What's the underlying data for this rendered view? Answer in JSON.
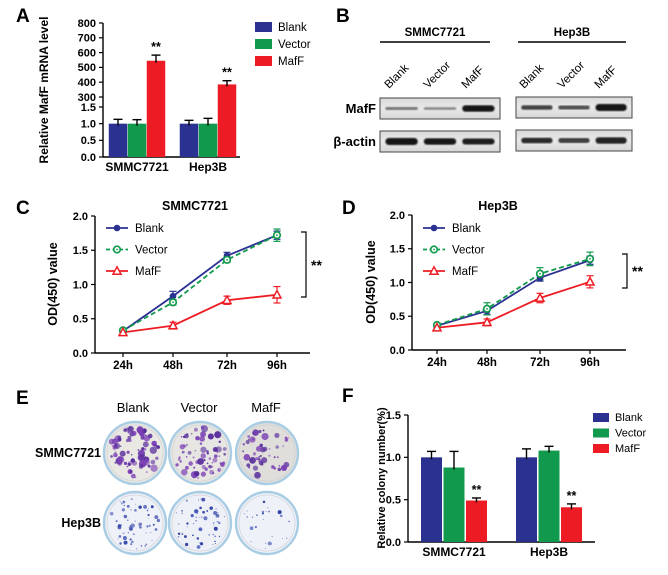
{
  "colors": {
    "blank": "#2b3191",
    "vector": "#119a4d",
    "maff": "#ed1c24",
    "axis": "#000000",
    "dish_rim": "#a9cce5"
  },
  "legend_labels": [
    "Blank",
    "Vector",
    "MafF"
  ],
  "panels": {
    "a": {
      "label": "A"
    },
    "b": {
      "label": "B",
      "cell_lines": [
        "SMMC7721",
        "Hep3B"
      ],
      "lanes": [
        "Blank",
        "Vector",
        "MafF"
      ],
      "blot_rows": [
        {
          "name": "MafF",
          "bands": [
            {
              "intensity": [
                0.32,
                0.22,
                1.0
              ],
              "thickness": [
                3.2,
                2.8,
                6.5
              ]
            },
            {
              "intensity": [
                0.7,
                0.6,
                1.0
              ],
              "thickness": [
                4.5,
                4.0,
                7.0
              ]
            }
          ]
        },
        {
          "name": "β-actin",
          "bands": [
            {
              "intensity": [
                1.0,
                0.98,
                0.95
              ],
              "thickness": [
                7.0,
                6.5,
                6.0
              ]
            },
            {
              "intensity": [
                0.85,
                0.72,
                0.9
              ],
              "thickness": [
                5.5,
                5.0,
                6.5
              ]
            }
          ]
        }
      ]
    },
    "c": {
      "label": "C"
    },
    "d": {
      "label": "D"
    },
    "e": {
      "label": "E",
      "col_labels": [
        "Blank",
        "Vector",
        "MafF"
      ],
      "rows": [
        {
          "cell_line": "SMMC7721",
          "colonies": [
            88,
            72,
            50
          ],
          "dot_color": "#7b3fb5",
          "dot_color_dark": "#552a9b",
          "dish_bg": [
            "#eae8e3",
            "#e8e6e2",
            "#e0dedb"
          ],
          "dot_scale": 1.0,
          "seeds": [
            7,
            13,
            21
          ]
        },
        {
          "cell_line": "Hep3B",
          "colonies": [
            62,
            54,
            26
          ],
          "dot_color": "#3a4cb4",
          "dot_color_dark": "#2c3ca3",
          "dish_bg": [
            "#eef1f7",
            "#edf0f6",
            "#eef2f8"
          ],
          "dot_scale": 0.55,
          "seeds": [
            31,
            43,
            57
          ]
        }
      ]
    },
    "f": {
      "label": "F"
    }
  },
  "chart_data": [
    {
      "panel": "A",
      "type": "bar",
      "broken_axis": true,
      "ylabel": "Relative MafF mRNA level",
      "categories": [
        "SMMC7721",
        "Hep3B"
      ],
      "lower_ticks": [
        "0.0",
        "0.5",
        "1.0",
        "1.5"
      ],
      "upper_ticks": [
        "300",
        "400",
        "500",
        "600",
        "700",
        "800"
      ],
      "series": [
        {
          "name": "Blank",
          "color_key": "blank",
          "values": [
            1.0,
            1.0
          ],
          "errors": [
            0.13,
            0.1
          ],
          "sig": [
            "",
            ""
          ]
        },
        {
          "name": "Vector",
          "color_key": "vector",
          "values": [
            1.0,
            1.0
          ],
          "errors": [
            0.12,
            0.16
          ],
          "sig": [
            "",
            ""
          ]
        },
        {
          "name": "MafF",
          "color_key": "maff",
          "values": [
            545,
            385
          ],
          "errors": [
            38,
            25
          ],
          "sig": [
            "**",
            "**"
          ]
        }
      ],
      "legend_position": "top-right"
    },
    {
      "panel": "C",
      "type": "line",
      "title": "SMMC7721",
      "ylabel": "OD(450) value",
      "ylim": [
        0,
        2.0
      ],
      "yticks": [
        "0.0",
        "0.5",
        "1.0",
        "1.5",
        "2.0"
      ],
      "x": [
        "24h",
        "48h",
        "72h",
        "96h"
      ],
      "series": [
        {
          "name": "Blank",
          "color_key": "blank",
          "marker": "filled-circle",
          "line": "solid",
          "values": [
            0.32,
            0.83,
            1.42,
            1.72
          ],
          "errors": [
            0.03,
            0.07,
            0.05,
            0.06
          ]
        },
        {
          "name": "Vector",
          "color_key": "vector",
          "marker": "open-circle",
          "line": "dashed",
          "values": [
            0.33,
            0.74,
            1.36,
            1.72
          ],
          "errors": [
            0.03,
            0.04,
            0.04,
            0.09
          ]
        },
        {
          "name": "MafF",
          "color_key": "maff",
          "marker": "open-triangle",
          "line": "solid",
          "values": [
            0.3,
            0.4,
            0.77,
            0.85
          ],
          "errors": [
            0.04,
            0.05,
            0.06,
            0.12
          ]
        }
      ],
      "sig_label": "**",
      "legend_position": "top-left"
    },
    {
      "panel": "D",
      "type": "line",
      "title": "Hep3B",
      "ylabel": "OD(450) value",
      "ylim": [
        0,
        2.0
      ],
      "yticks": [
        "0.0",
        "0.5",
        "1.0",
        "1.5",
        "2.0"
      ],
      "x": [
        "24h",
        "48h",
        "72h",
        "96h"
      ],
      "series": [
        {
          "name": "Blank",
          "color_key": "blank",
          "marker": "filled-circle",
          "line": "solid",
          "values": [
            0.36,
            0.58,
            1.07,
            1.33
          ],
          "errors": [
            0.03,
            0.05,
            0.05,
            0.06
          ]
        },
        {
          "name": "Vector",
          "color_key": "vector",
          "marker": "open-circle",
          "line": "dashed",
          "values": [
            0.37,
            0.61,
            1.13,
            1.35
          ],
          "errors": [
            0.03,
            0.09,
            0.09,
            0.1
          ]
        },
        {
          "name": "MafF",
          "color_key": "maff",
          "marker": "open-triangle",
          "line": "solid",
          "values": [
            0.33,
            0.41,
            0.77,
            1.01
          ],
          "errors": [
            0.04,
            0.05,
            0.07,
            0.09
          ]
        }
      ],
      "sig_label": "**",
      "legend_position": "top-left"
    },
    {
      "panel": "F",
      "type": "bar",
      "broken_axis": false,
      "ylabel": "Relative colony number(%)",
      "categories": [
        "SMMC7721",
        "Hep3B"
      ],
      "yticks": [
        "0.0",
        "0.5",
        "1.0",
        "1.5"
      ],
      "series": [
        {
          "name": "Blank",
          "color_key": "blank",
          "values": [
            1.0,
            1.0
          ],
          "errors": [
            0.07,
            0.1
          ],
          "sig": [
            "",
            ""
          ]
        },
        {
          "name": "Vector",
          "color_key": "vector",
          "values": [
            0.88,
            1.08
          ],
          "errors": [
            0.19,
            0.05
          ],
          "sig": [
            "",
            ""
          ]
        },
        {
          "name": "MafF",
          "color_key": "maff",
          "values": [
            0.49,
            0.41
          ],
          "errors": [
            0.03,
            0.04
          ],
          "sig": [
            "**",
            "**"
          ]
        }
      ],
      "legend_position": "top-right"
    }
  ]
}
